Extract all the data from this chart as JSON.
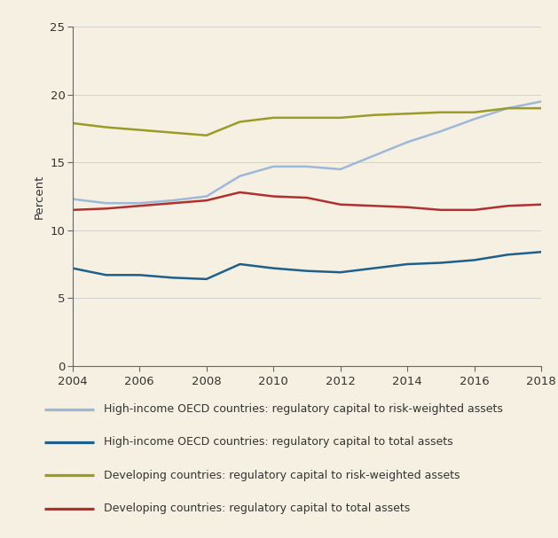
{
  "years": [
    2004,
    2005,
    2006,
    2007,
    2008,
    2009,
    2010,
    2011,
    2012,
    2013,
    2014,
    2015,
    2016,
    2017,
    2018
  ],
  "series": {
    "hi_oecd_rwa": [
      12.3,
      12.0,
      12.0,
      12.2,
      12.5,
      14.0,
      14.7,
      14.7,
      14.5,
      15.5,
      16.5,
      17.3,
      18.2,
      19.0,
      19.5
    ],
    "hi_oecd_total": [
      7.2,
      6.7,
      6.7,
      6.5,
      6.4,
      7.5,
      7.2,
      7.0,
      6.9,
      7.2,
      7.5,
      7.6,
      7.8,
      8.2,
      8.4
    ],
    "dev_rwa": [
      17.9,
      17.6,
      17.4,
      17.2,
      17.0,
      18.0,
      18.3,
      18.3,
      18.3,
      18.5,
      18.6,
      18.7,
      18.7,
      19.0,
      19.0
    ],
    "dev_total": [
      11.5,
      11.6,
      11.8,
      12.0,
      12.2,
      12.8,
      12.5,
      12.4,
      11.9,
      11.8,
      11.7,
      11.5,
      11.5,
      11.8,
      11.9
    ]
  },
  "colors": {
    "hi_oecd_rwa": "#9db8d9",
    "hi_oecd_total": "#1f5f8b",
    "dev_rwa": "#9b9b28",
    "dev_total": "#b03030"
  },
  "legend_labels": [
    "High-income OECD countries: regulatory capital to risk-weighted assets",
    "High-income OECD countries: regulatory capital to total assets",
    "Developing countries: regulatory capital to risk-weighted assets",
    "Developing countries: regulatory capital to total assets"
  ],
  "ylabel": "Percent",
  "ylim": [
    0,
    25
  ],
  "yticks": [
    0,
    5,
    10,
    15,
    20,
    25
  ],
  "xlim": [
    2004,
    2018
  ],
  "xticks": [
    2004,
    2006,
    2008,
    2010,
    2012,
    2014,
    2016,
    2018
  ],
  "background_color": "#f5f0e1",
  "linewidth": 1.8,
  "axis_fontsize": 9.5,
  "legend_fontsize": 9.0
}
